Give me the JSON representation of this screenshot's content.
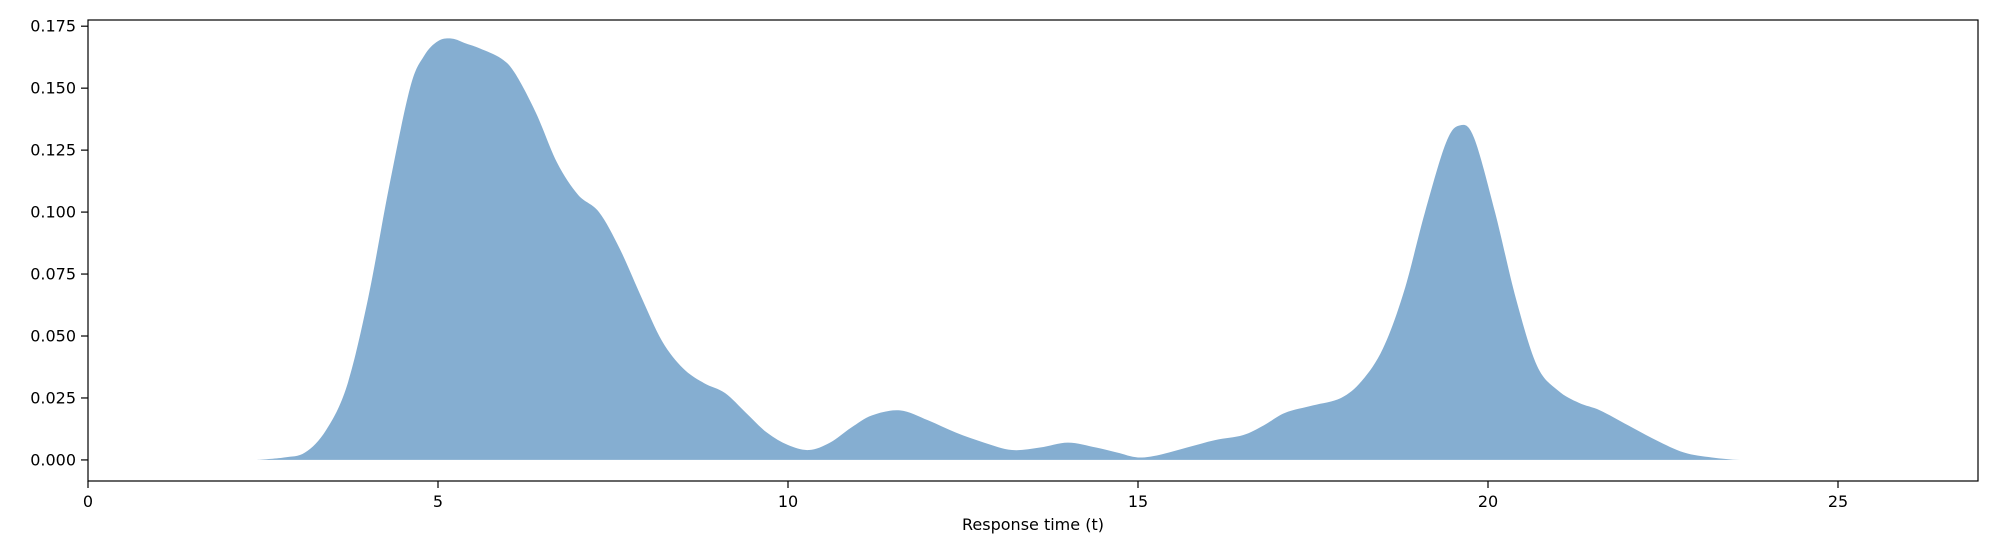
{
  "chart_data": {
    "type": "area",
    "title": "",
    "xlabel": "Response time (t)",
    "ylabel": "",
    "xlim": [
      0,
      27
    ],
    "ylim": [
      -0.0085,
      0.1775
    ],
    "xticks": [
      0,
      5,
      10,
      15,
      20,
      25
    ],
    "yticks": [
      0.0,
      0.025,
      0.05,
      0.075,
      0.1,
      0.125,
      0.15,
      0.175
    ],
    "ytick_labels": [
      "0.000",
      "0.025",
      "0.050",
      "0.075",
      "0.100",
      "0.125",
      "0.150",
      "0.175"
    ],
    "grid": false,
    "fill_color": "#85aed1",
    "series": [
      {
        "x": [
          2.4,
          2.8,
          3.1,
          3.4,
          3.7,
          4.0,
          4.3,
          4.6,
          4.8,
          5.0,
          5.2,
          5.4,
          5.6,
          5.9,
          6.1,
          6.4,
          6.7,
          7.0,
          7.3,
          7.6,
          7.9,
          8.2,
          8.5,
          8.8,
          9.1,
          9.4,
          9.7,
          10.0,
          10.3,
          10.6,
          10.9,
          11.2,
          11.6,
          12.0,
          12.4,
          12.8,
          13.2,
          13.6,
          14.0,
          14.4,
          14.7,
          15.0,
          15.3,
          15.7,
          16.1,
          16.5,
          16.8,
          17.1,
          17.5,
          17.9,
          18.2,
          18.5,
          18.8,
          19.1,
          19.4,
          19.6,
          19.8,
          20.1,
          20.4,
          20.7,
          21.0,
          21.3,
          21.6,
          22.0,
          22.4,
          22.8,
          23.2,
          23.6,
          24.0
        ],
        "y": [
          0.0,
          0.001,
          0.003,
          0.012,
          0.03,
          0.065,
          0.11,
          0.15,
          0.163,
          0.169,
          0.17,
          0.168,
          0.166,
          0.162,
          0.156,
          0.14,
          0.12,
          0.107,
          0.1,
          0.085,
          0.066,
          0.048,
          0.037,
          0.031,
          0.027,
          0.019,
          0.011,
          0.006,
          0.004,
          0.007,
          0.013,
          0.018,
          0.02,
          0.016,
          0.011,
          0.007,
          0.004,
          0.005,
          0.007,
          0.005,
          0.003,
          0.001,
          0.002,
          0.005,
          0.008,
          0.01,
          0.014,
          0.019,
          0.022,
          0.025,
          0.032,
          0.045,
          0.068,
          0.1,
          0.128,
          0.135,
          0.13,
          0.1,
          0.065,
          0.038,
          0.028,
          0.023,
          0.02,
          0.014,
          0.008,
          0.003,
          0.001,
          0.0,
          0.0
        ]
      }
    ]
  }
}
